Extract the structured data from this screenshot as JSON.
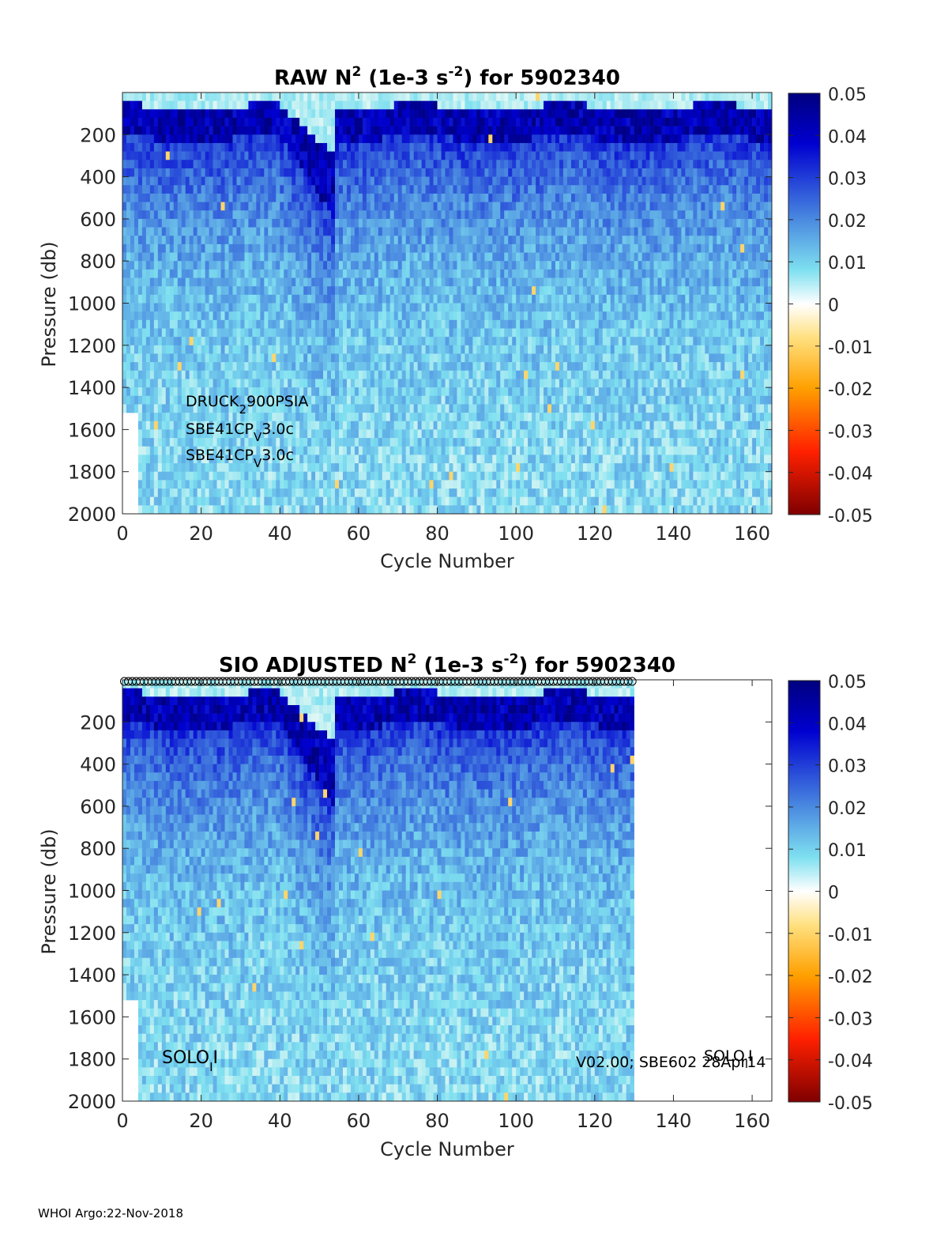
{
  "footer": "WHOI Argo:22-Nov-2018",
  "chart_data": [
    {
      "type": "heatmap",
      "title": {
        "main": "RAW N",
        "sup": "2",
        "mid": " (1e-3 s",
        "sup2": "-2",
        "end": ") for 5902340"
      },
      "xlabel": "Cycle Number",
      "ylabel": "Pressure (db)",
      "xlim": [
        0,
        165
      ],
      "ylim": [
        2000,
        0
      ],
      "xticks": [
        0,
        20,
        40,
        60,
        80,
        100,
        120,
        140,
        160
      ],
      "yticks": [
        200,
        400,
        600,
        800,
        1000,
        1200,
        1400,
        1600,
        1800,
        2000
      ],
      "color_range": [
        -0.05,
        0.05
      ],
      "colorbar_ticks": [
        "0.05",
        "0.04",
        "0.03",
        "0.02",
        "0.01",
        "0",
        "-0.01",
        "-0.02",
        "-0.03",
        "-0.04",
        "-0.05"
      ],
      "cycles_shown": 165,
      "annotations": [
        {
          "text": "DRUCK",
          "sub": "2",
          "rest": "900PSIA"
        },
        {
          "text": "SBE41CP",
          "sub": "V",
          "rest": "3.0c"
        },
        {
          "text": "SBE41CP",
          "sub": "V",
          "rest": "3.0c"
        }
      ]
    },
    {
      "type": "heatmap",
      "title": {
        "main": "SIO  ADJUSTED N",
        "sup": "2",
        "mid": " (1e-3 s",
        "sup2": "-2",
        "end": ") for 5902340"
      },
      "xlabel": "Cycle Number",
      "ylabel": "Pressure (db)",
      "xlim": [
        0,
        165
      ],
      "ylim": [
        2000,
        0
      ],
      "xticks": [
        0,
        20,
        40,
        60,
        80,
        100,
        120,
        140,
        160
      ],
      "yticks": [
        200,
        400,
        600,
        800,
        1000,
        1200,
        1400,
        1600,
        1800,
        2000
      ],
      "color_range": [
        -0.05,
        0.05
      ],
      "colorbar_ticks": [
        "0.05",
        "0.04",
        "0.03",
        "0.02",
        "0.01",
        "0",
        "-0.01",
        "-0.02",
        "-0.03",
        "-0.04",
        "-0.05"
      ],
      "cycles_shown": 130,
      "markers": "circles at top for each adjusted cycle",
      "annotations": [
        {
          "text": "SOLO",
          "sub": "I",
          "rest": "I"
        },
        {
          "text": "V02.00; SBE602 28Apr14",
          "sub": "",
          "rest": ""
        },
        {
          "text": "SOLO",
          "sub": "I",
          "rest": "I"
        }
      ]
    }
  ]
}
